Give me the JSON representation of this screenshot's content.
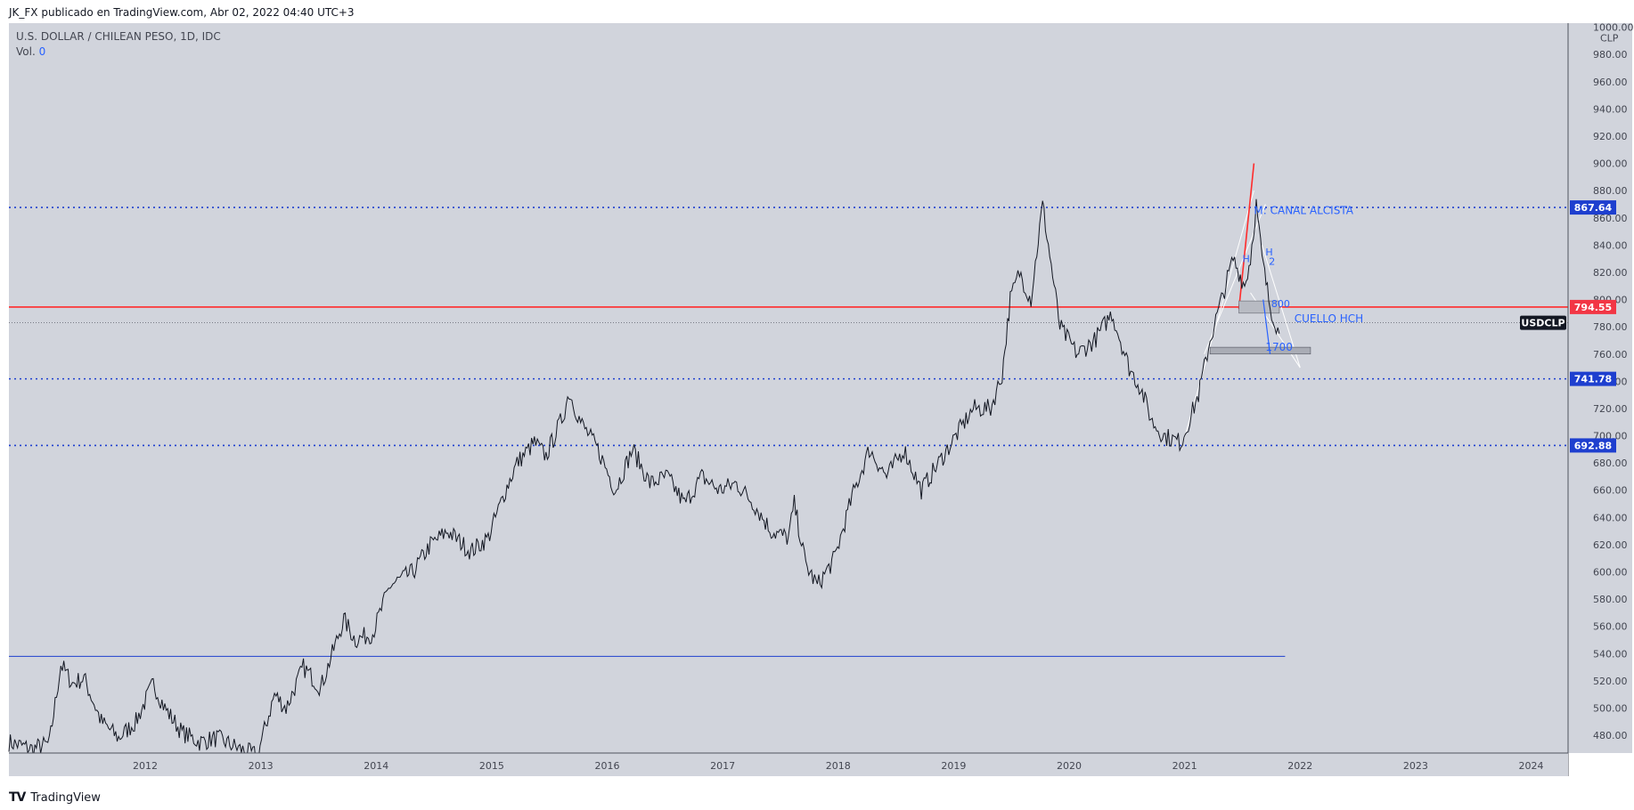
{
  "header": {
    "publisher_line": "JK_FX publicado en TradingView.com, Abr 02, 2022 04:40 UTC+3"
  },
  "legend": {
    "symbol_line": "U.S. DOLLAR / CHILEAN PESO, 1D, IDC",
    "volume_label": "Vol.",
    "volume_value": "0"
  },
  "footer": {
    "brand": "TradingView"
  },
  "colors": {
    "plot_bg": "#d1d4dc",
    "dotted_line": "#1e3fcf",
    "red_line": "#ff2b2b",
    "price_line": "#131722",
    "annotation_blue": "#2962ff"
  },
  "chart_data": {
    "type": "line",
    "symbol": "USDCLP",
    "currency_unit": "CLP",
    "x_ticks": [
      "2012",
      "2013",
      "2014",
      "2015",
      "2016",
      "2017",
      "2018",
      "2019",
      "2020",
      "2021",
      "2022",
      "2023",
      "2024"
    ],
    "y_ticks": [
      480,
      500,
      520,
      540,
      560,
      580,
      600,
      620,
      640,
      660,
      680,
      700,
      720,
      740,
      760,
      780,
      800,
      820,
      840,
      860,
      880,
      900,
      920,
      940,
      960,
      980,
      1000
    ],
    "y_tick_labels": [
      "480.00",
      "500.00",
      "520.00",
      "540.00",
      "560.00",
      "580.00",
      "600.00",
      "620.00",
      "640.00",
      "660.00",
      "680.00",
      "700.00",
      "720.00",
      "740.00",
      "760.00",
      "780.00",
      "800.00",
      "820.00",
      "840.00",
      "860.00",
      "880.00",
      "900.00",
      "920.00",
      "940.00",
      "960.00",
      "980.00",
      "1000.00"
    ],
    "ylim": [
      467,
      1003
    ],
    "xlim": [
      2011.2,
      2024.7
    ],
    "grid": false,
    "series": [
      {
        "x": [
          2011.2,
          2011.4,
          2011.55,
          2011.65,
          2011.75,
          2011.85,
          2012.0,
          2012.15,
          2012.3,
          2012.45,
          2012.55,
          2012.7,
          2012.85,
          2013.0,
          2013.2,
          2013.35,
          2013.5,
          2013.6,
          2013.75,
          2013.9,
          2014.0,
          2014.1,
          2014.2,
          2014.35,
          2014.5,
          2014.7,
          2014.85,
          2015.0,
          2015.2,
          2015.35,
          2015.5,
          2015.6,
          2015.75,
          2015.85,
          2016.0,
          2016.05,
          2016.15,
          2016.3,
          2016.45,
          2016.6,
          2016.75,
          2016.9,
          2017.05,
          2017.2,
          2017.35,
          2017.5,
          2017.65,
          2017.8,
          2017.95,
          2018.0,
          2018.1,
          2018.2,
          2018.35,
          2018.5,
          2018.65,
          2018.8,
          2018.95,
          2019.1,
          2019.25,
          2019.4,
          2019.55,
          2019.7,
          2019.8,
          2019.87,
          2019.95,
          2020.05,
          2020.15,
          2020.2,
          2020.3,
          2020.45,
          2020.6,
          2020.75,
          2020.9,
          2021.0,
          2021.1,
          2021.2,
          2021.35,
          2021.5,
          2021.6,
          2021.7,
          2021.8,
          2021.9,
          2021.95,
          2022.0,
          2022.05,
          2022.12,
          2022.2
        ],
        "y": [
          475,
          470,
          474,
          532,
          518,
          522,
          490,
          478,
          490,
          518,
          500,
          482,
          475,
          478,
          470,
          465,
          510,
          500,
          530,
          515,
          540,
          565,
          550,
          555,
          590,
          600,
          620,
          630,
          615,
          625,
          660,
          680,
          695,
          685,
          715,
          732,
          710,
          690,
          660,
          690,
          665,
          670,
          650,
          670,
          660,
          665,
          650,
          630,
          625,
          650,
          605,
          590,
          610,
          655,
          690,
          670,
          690,
          660,
          680,
          700,
          720,
          720,
          745,
          800,
          820,
          800,
          870,
          840,
          780,
          760,
          770,
          790,
          750,
          735,
          710,
          700,
          695,
          730,
          770,
          800,
          830,
          810,
          830,
          870,
          830,
          795,
          775
        ]
      }
    ],
    "horizontal_levels": [
      {
        "value": 867.64,
        "label": "867.64",
        "style": "dotted",
        "color": "#1e3fcf"
      },
      {
        "value": 794.55,
        "label": "794.55",
        "style": "solid",
        "color": "#ff2b2b"
      },
      {
        "value": 741.78,
        "label": "741.78",
        "style": "dotted",
        "color": "#1e3fcf"
      },
      {
        "value": 692.88,
        "label": "692.88",
        "style": "dotted",
        "color": "#1e3fcf"
      },
      {
        "value": 538,
        "label": "",
        "style": "solid",
        "color": "#1e3fcf"
      }
    ],
    "last_price_marker": {
      "label": "USDCLP",
      "value": 783
    },
    "annotations": [
      "M: CANAL ALCISTA",
      "CUELLO HCH",
      "800",
      "1700",
      "H",
      "H",
      "2"
    ]
  }
}
